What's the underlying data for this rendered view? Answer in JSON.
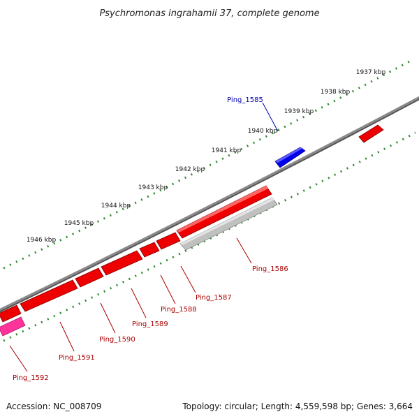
{
  "title": "Psychromonas ingrahamii 37, complete genome",
  "footer": {
    "accession": "Accession: NC_008709",
    "summary": "Topology: circular; Length: 4,559,598 bp; Genes: 3,664"
  },
  "colors": {
    "backbone": "#808080",
    "forward_gene": "#0000ee",
    "reverse_gene": "#ee0000",
    "pseudo_gene": "#c0c0c0",
    "rna_gene": "#ff3399",
    "tick": "#2e8b2e",
    "forward_label": "#0000aa",
    "reverse_label": "#aa0000"
  },
  "kbp_ticks": [
    {
      "label": "1937 kbp"
    },
    {
      "label": "1938 kbp"
    },
    {
      "label": "1939 kbp"
    },
    {
      "label": "1940 kbp"
    },
    {
      "label": "1941 kbp"
    },
    {
      "label": "1942 kbp"
    },
    {
      "label": "1943 kbp"
    },
    {
      "label": "1944 kbp"
    },
    {
      "label": "1945 kbp"
    },
    {
      "label": "1946 kbp"
    }
  ],
  "gene_labels": [
    {
      "id": "Ping_1585",
      "strand": "forward"
    },
    {
      "id": "Ping_1586",
      "strand": "reverse"
    },
    {
      "id": "Ping_1587",
      "strand": "reverse"
    },
    {
      "id": "Ping_1588",
      "strand": "reverse"
    },
    {
      "id": "Ping_1589",
      "strand": "reverse"
    },
    {
      "id": "Ping_1590",
      "strand": "reverse"
    },
    {
      "id": "Ping_1591",
      "strand": "reverse"
    },
    {
      "id": "Ping_1592",
      "strand": "reverse"
    }
  ]
}
